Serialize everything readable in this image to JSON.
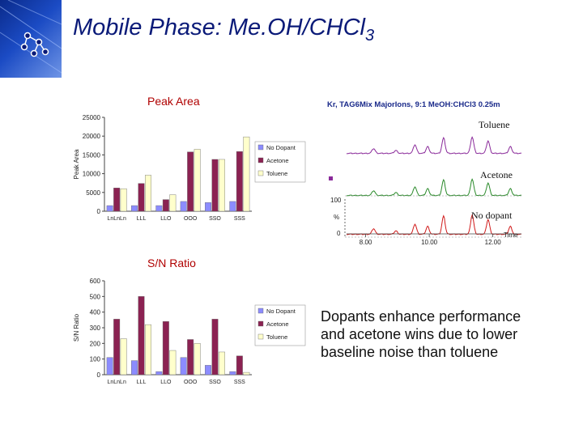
{
  "slide": {
    "title_main": "Mobile Phase: Me.OH/CHCl",
    "title_sub": "3",
    "peak_area_heading": "Peak Area",
    "sn_heading": "S/N Ratio",
    "conclusion_line1": "Dopants enhance performance",
    "conclusion_line2": "and acetone wins due to lower",
    "conclusion_line3": "baseline noise than toluene"
  },
  "chromatogram": {
    "title": "Kr, TAG6Mix MajorIons, 9:1 MeOH:CHCl3 0.25m",
    "trace_labels": [
      "Toluene",
      "Acetone",
      "No dopant"
    ],
    "trace_colors": [
      "#8a2a9a",
      "#2a8a2a",
      "#d01a1a"
    ],
    "x_ticks": [
      "8.00",
      "10.00",
      "12.00"
    ],
    "x_unit": "Time",
    "y_ticks": [
      "100",
      "%",
      "0"
    ],
    "x_range": [
      7.4,
      12.9
    ],
    "peak_positions": [
      8.25,
      8.95,
      9.55,
      9.95,
      10.45,
      11.35,
      11.85,
      12.55
    ],
    "peak_heights": [
      0.25,
      0.15,
      0.45,
      0.35,
      0.8,
      0.85,
      0.65,
      0.35
    ]
  },
  "chart_data": [
    {
      "type": "bar",
      "title": "Peak Area",
      "ylabel": "Peak Area",
      "xlabel": "",
      "categories": [
        "LnLnLn",
        "LLL",
        "LLO",
        "OOO",
        "SSO",
        "SSS"
      ],
      "ylim": [
        0,
        25000
      ],
      "yticks": [
        0,
        5000,
        10000,
        15000,
        20000,
        25000
      ],
      "legend": "right",
      "series": [
        {
          "name": "No Dopant",
          "color": "#8c8cff",
          "values": [
            1500,
            1500,
            1500,
            2600,
            2300,
            2600
          ]
        },
        {
          "name": "Acetone",
          "color": "#8b2252",
          "values": [
            6200,
            7400,
            3100,
            15800,
            13800,
            15900
          ]
        },
        {
          "name": "Toluene",
          "color": "#ffffcc",
          "values": [
            6000,
            9600,
            4400,
            16500,
            13800,
            19800
          ]
        }
      ]
    },
    {
      "type": "bar",
      "title": "S/N Ratio",
      "ylabel": "S/N Ratio",
      "xlabel": "",
      "categories": [
        "LnLnLn",
        "LLL",
        "LLO",
        "OOO",
        "SSO",
        "SSS"
      ],
      "ylim": [
        0,
        600
      ],
      "yticks": [
        0,
        100,
        200,
        300,
        400,
        500,
        600
      ],
      "legend": "right",
      "series": [
        {
          "name": "No Dopant",
          "color": "#8c8cff",
          "values": [
            110,
            90,
            20,
            110,
            60,
            20
          ]
        },
        {
          "name": "Acetone",
          "color": "#8b2252",
          "values": [
            355,
            500,
            340,
            225,
            355,
            120
          ]
        },
        {
          "name": "Toluene",
          "color": "#ffffcc",
          "values": [
            230,
            320,
            155,
            200,
            145,
            15
          ]
        }
      ]
    }
  ]
}
